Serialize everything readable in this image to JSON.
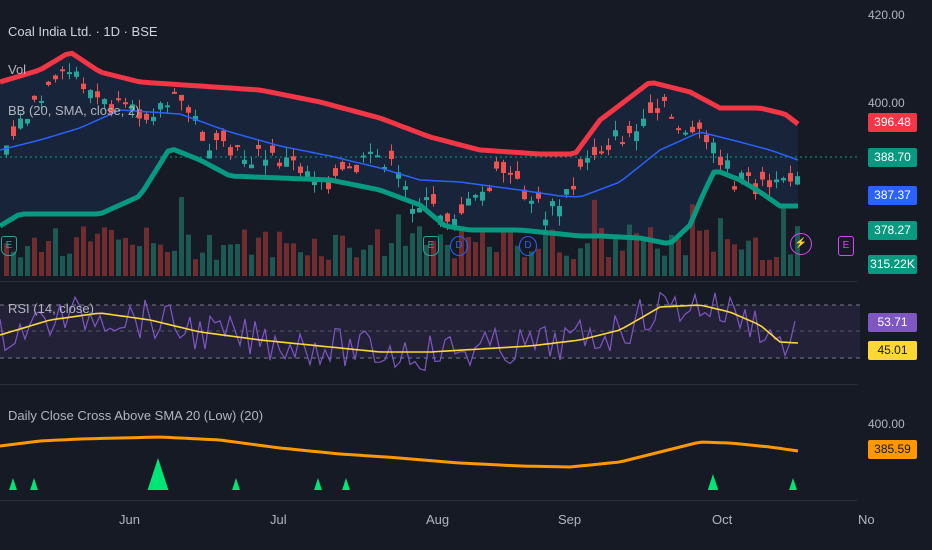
{
  "header": {
    "symbol": "Coal India Ltd. · 1D · BSE"
  },
  "indicators": {
    "vol": "Vol",
    "bb": "BB (20, SMA, close, 2)",
    "rsi": "RSI (14, close)",
    "dc": "Daily Close Cross Above SMA 20 (Low) (20)"
  },
  "price_axis": {
    "top": "420.00",
    "mid": "400.00",
    "dc_top": "400.00"
  },
  "price_tags": {
    "bb_upper": "396.48",
    "close": "388.70",
    "bb_basis": "387.37",
    "bb_lower": "378.27",
    "volume": "315.22K",
    "rsi": "53.71",
    "rsi_ma": "45.01",
    "dc": "385.59"
  },
  "time_axis": [
    "Jun",
    "Jul",
    "Aug",
    "Sep",
    "Oct",
    "No"
  ],
  "events": {
    "earnings": "E",
    "dividend": "D",
    "split": "⚡"
  },
  "colors": {
    "up": "#26a69a",
    "down": "#ef5350",
    "bb_upper": "#f23645",
    "bb_lower": "#089981",
    "basis": "#2962ff",
    "rsi": "#7e57c2",
    "rsi_ma": "#fdd835",
    "dc": "#ff9800",
    "signal": "#00e676"
  },
  "chart_data": {
    "type": "candlestick",
    "title": "Coal India Ltd. · 1D · BSE",
    "x_ticks": [
      "Jun",
      "Jul",
      "Aug",
      "Sep",
      "Oct",
      "No"
    ],
    "price_last": 388.7,
    "bb_upper_last": 396.48,
    "bb_basis_last": 387.37,
    "bb_lower_last": 378.27,
    "volume_last": "315.22K",
    "rsi_last": 53.71,
    "rsi_ma_last": 45.01,
    "dc_last": 385.59,
    "y_ticks": [
      420,
      400
    ]
  }
}
